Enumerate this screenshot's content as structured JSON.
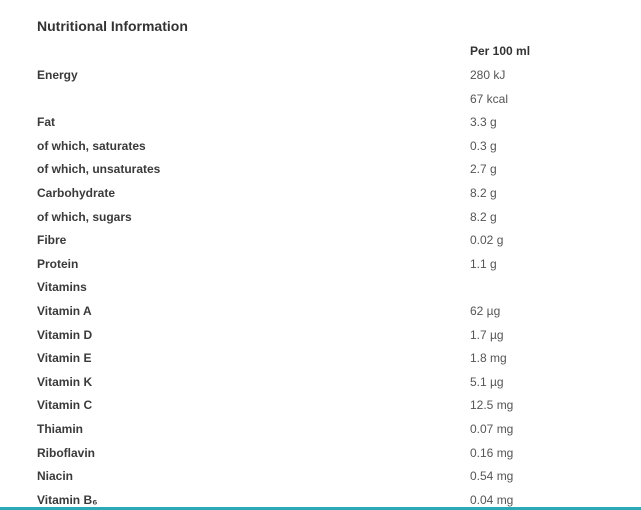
{
  "title": "Nutritional Information",
  "table": {
    "header": "Per 100 ml",
    "rows": [
      {
        "label": "Energy",
        "value": "280 kJ"
      },
      {
        "value": "67 kcal"
      },
      {
        "label": "Fat",
        "value": "3.3 g"
      },
      {
        "label": "of which, saturates",
        "value": "0.3 g"
      },
      {
        "label": "of which, unsaturates",
        "value": "2.7 g"
      },
      {
        "label": "Carbohydrate",
        "value": "8.2 g"
      },
      {
        "label": "of which, sugars",
        "value": "8.2 g"
      },
      {
        "label": "Fibre",
        "value": "0.02 g"
      },
      {
        "label": "Protein",
        "value": "1.1 g"
      },
      {
        "label": "Vitamins"
      },
      {
        "label": "Vitamin A",
        "value": "62 µg"
      },
      {
        "label": "Vitamin D",
        "value": "1.7 µg"
      },
      {
        "label": "Vitamin E",
        "value": "1.8 mg"
      },
      {
        "label": "Vitamin K",
        "value": "5.1 µg"
      },
      {
        "label": "Vitamin C",
        "value": "12.5 mg"
      },
      {
        "label": "Thiamin",
        "value": "0.07 mg"
      },
      {
        "label": "Riboflavin",
        "value": "0.16 mg"
      },
      {
        "label": "Niacin",
        "value": "0.54 mg"
      },
      {
        "label": "Vitamin B₆",
        "value": "0.04 mg"
      }
    ]
  }
}
